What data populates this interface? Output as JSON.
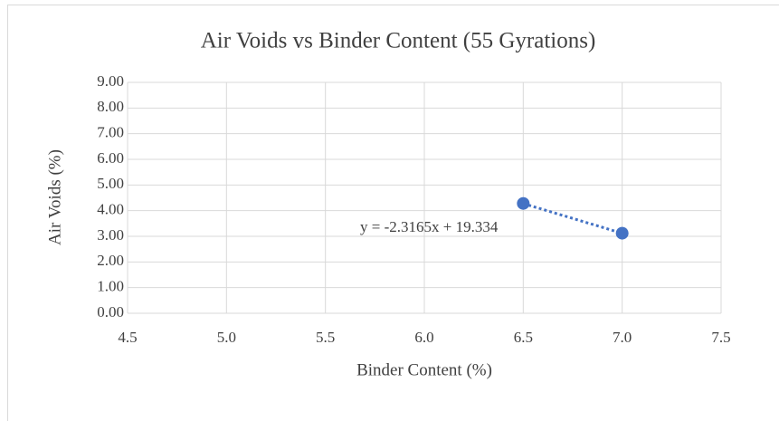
{
  "chart_data": {
    "type": "scatter",
    "title": "Air Voids vs Binder Content (55 Gyrations)",
    "x_label": "Binder Content (%)",
    "y_label": "Air Voids (%)",
    "series": [
      {
        "name": "Air Voids",
        "color": "#4472c4",
        "x": [
          6.5,
          7.0
        ],
        "values": [
          4.28,
          3.12
        ]
      }
    ],
    "trendline": {
      "slope": -2.3165,
      "intercept": 19.334,
      "label": "y = -2.3165x + 19.334",
      "color": "#4472c4"
    },
    "xlim": [
      4.5,
      7.5
    ],
    "xticks": [
      4.5,
      {
        "value": 5,
        "label": "5.0"
      },
      5.5,
      {
        "value": 6,
        "label": "6.0"
      },
      6.5,
      {
        "value": 7,
        "label": "7.0"
      },
      7.5
    ],
    "ylim": [
      0,
      9
    ],
    "yticks": [
      {
        "value": 0,
        "label": "0.00"
      },
      {
        "value": 1,
        "label": "1.00"
      },
      {
        "value": 2,
        "label": "2.00"
      },
      {
        "value": 3,
        "label": "3.00"
      },
      {
        "value": 4,
        "label": "4.00"
      },
      {
        "value": 5,
        "label": "5.00"
      },
      {
        "value": 6,
        "label": "6.00"
      },
      {
        "value": 7,
        "label": "7.00"
      },
      {
        "value": 8,
        "label": "8.00"
      },
      {
        "value": 9,
        "label": "9.00"
      }
    ],
    "grid": true
  }
}
